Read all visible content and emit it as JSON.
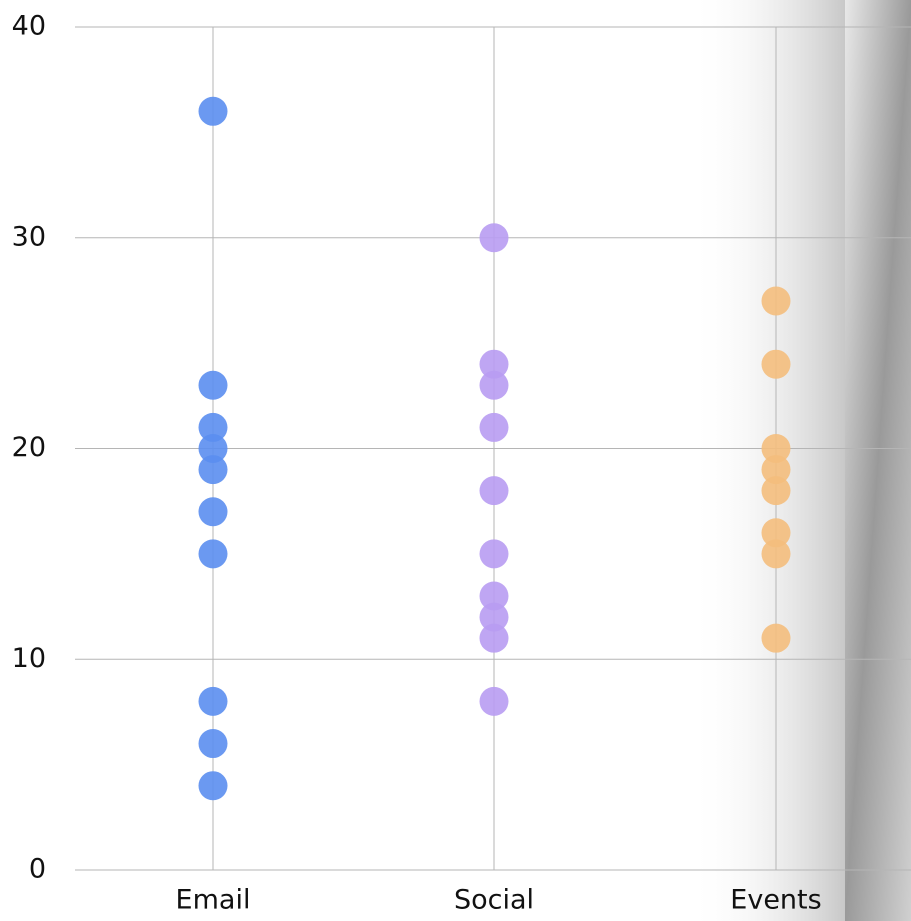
{
  "chart_data": {
    "type": "strip",
    "categories": [
      "Email",
      "Social",
      "Events"
    ],
    "series": [
      {
        "color": "#5b8ef0",
        "values": [
          36,
          23,
          21,
          20,
          19,
          17,
          15,
          8,
          6,
          4
        ]
      },
      {
        "color": "#b89cf2",
        "values": [
          30,
          24,
          23,
          21,
          18,
          15,
          13,
          12,
          11,
          8
        ]
      },
      {
        "color": "#f4be7d",
        "values": [
          27,
          24,
          20,
          19,
          18,
          16,
          15,
          11
        ]
      }
    ],
    "ylim": [
      0,
      40
    ],
    "yticks": [
      0,
      10,
      20,
      30,
      40
    ],
    "grid": true
  }
}
